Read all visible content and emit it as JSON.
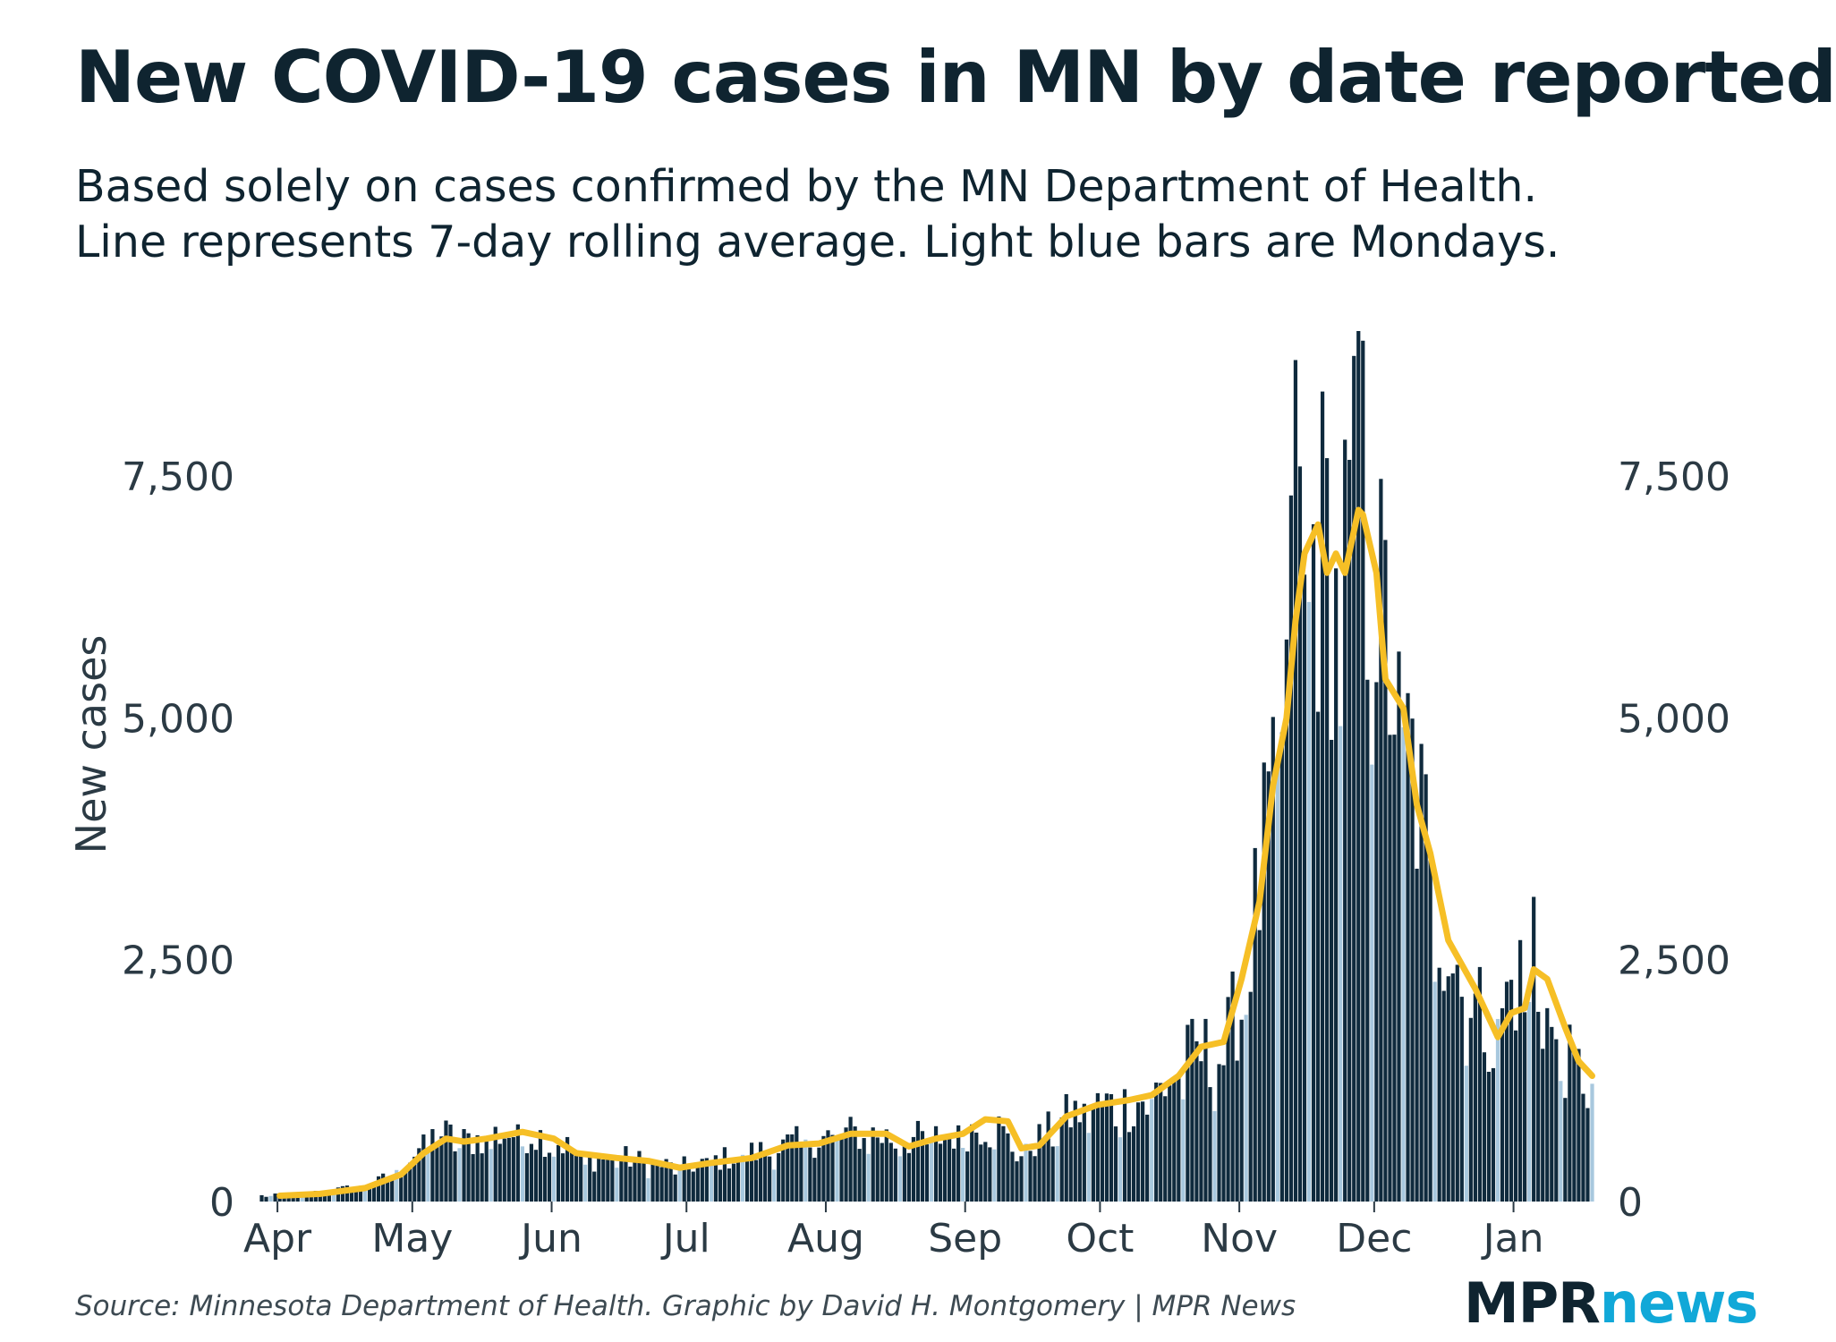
{
  "header": {
    "title": "New COVID-19 cases in MN by date reported",
    "subtitle_line1": "Based solely on cases confirmed by the MN Department of Health.",
    "subtitle_line2": "Line represents 7-day rolling average. Light blue bars are Mondays."
  },
  "footer": {
    "source": "Source: Minnesota Department of Health. Graphic by David H. Montgomery | MPR News",
    "logo_mpr": "MPR",
    "logo_news": "news"
  },
  "colors": {
    "bar": "#0f2a3d",
    "monday_bar": "#a8c8de",
    "line": "#f6bf26",
    "text": "#0f2430"
  },
  "chart_data": {
    "type": "bar",
    "ylabel": "New cases",
    "ylim": [
      0,
      9000
    ],
    "y_ticks": [
      0,
      2500,
      5000,
      7500
    ],
    "y_tick_labels": [
      "0",
      "2,500",
      "5,000",
      "7,500"
    ],
    "x_tick_labels": [
      "Apr",
      "May",
      "Jun",
      "Jul",
      "Aug",
      "Sep",
      "Oct",
      "Nov",
      "Dec",
      "Jan"
    ],
    "x_start": "2020-03-28",
    "x_end": "2021-01-18",
    "series": [
      {
        "name": "Daily new cases",
        "role": "bars",
        "monday_highlight": true
      },
      {
        "name": "7-day rolling average",
        "role": "line"
      }
    ],
    "daily_anchors": [
      [
        "2020-03-28",
        60
      ],
      [
        "2020-04-05",
        70
      ],
      [
        "2020-04-15",
        130
      ],
      [
        "2020-04-22",
        180
      ],
      [
        "2020-04-28",
        350
      ],
      [
        "2020-05-03",
        600
      ],
      [
        "2020-05-07",
        700
      ],
      [
        "2020-05-12",
        620
      ],
      [
        "2020-05-20",
        700
      ],
      [
        "2020-05-27",
        700
      ],
      [
        "2020-06-03",
        600
      ],
      [
        "2020-06-08",
        420
      ],
      [
        "2020-06-15",
        470
      ],
      [
        "2020-06-22",
        400
      ],
      [
        "2020-06-29",
        350
      ],
      [
        "2020-07-06",
        420
      ],
      [
        "2020-07-13",
        480
      ],
      [
        "2020-07-20",
        550
      ],
      [
        "2020-07-27",
        620
      ],
      [
        "2020-08-03",
        700
      ],
      [
        "2020-08-10",
        700
      ],
      [
        "2020-08-17",
        650
      ],
      [
        "2020-08-24",
        650
      ],
      [
        "2020-08-31",
        720
      ],
      [
        "2020-09-07",
        820
      ],
      [
        "2020-09-12",
        500
      ],
      [
        "2020-09-17",
        650
      ],
      [
        "2020-09-24",
        900
      ],
      [
        "2020-10-01",
        1000
      ],
      [
        "2020-10-08",
        1000
      ],
      [
        "2020-10-15",
        1200
      ],
      [
        "2020-10-22",
        1550
      ],
      [
        "2020-10-28",
        1500
      ],
      [
        "2020-11-01",
        2200
      ],
      [
        "2020-11-05",
        3200
      ],
      [
        "2020-11-08",
        4300
      ],
      [
        "2020-11-12",
        5600
      ],
      [
        "2020-11-15",
        6800
      ],
      [
        "2020-11-20",
        6700
      ],
      [
        "2020-11-24",
        6600
      ],
      [
        "2020-11-29",
        7300
      ],
      [
        "2020-12-02",
        6000
      ],
      [
        "2020-12-06",
        5200
      ],
      [
        "2020-12-10",
        4200
      ],
      [
        "2020-12-14",
        3200
      ],
      [
        "2020-12-18",
        2600
      ],
      [
        "2020-12-23",
        2000
      ],
      [
        "2020-12-27",
        1800
      ],
      [
        "2021-01-01",
        2300
      ],
      [
        "2021-01-06",
        2200
      ],
      [
        "2021-01-10",
        1600
      ],
      [
        "2021-01-14",
        1350
      ],
      [
        "2021-01-18",
        1300
      ]
    ],
    "daily_spikes": [
      [
        "2020-11-12",
        7300
      ],
      [
        "2020-11-13",
        8700
      ],
      [
        "2020-11-14",
        7600
      ],
      [
        "2020-11-27",
        9000
      ],
      [
        "2020-11-28",
        8900
      ],
      [
        "2021-01-05",
        3150
      ]
    ],
    "rolling_average": [
      [
        "2020-04-01",
        60
      ],
      [
        "2020-04-10",
        80
      ],
      [
        "2020-04-20",
        140
      ],
      [
        "2020-04-28",
        280
      ],
      [
        "2020-05-03",
        500
      ],
      [
        "2020-05-08",
        650
      ],
      [
        "2020-05-12",
        620
      ],
      [
        "2020-05-17",
        650
      ],
      [
        "2020-05-25",
        720
      ],
      [
        "2020-06-01",
        650
      ],
      [
        "2020-06-06",
        500
      ],
      [
        "2020-06-15",
        450
      ],
      [
        "2020-06-22",
        420
      ],
      [
        "2020-06-29",
        350
      ],
      [
        "2020-07-06",
        400
      ],
      [
        "2020-07-15",
        450
      ],
      [
        "2020-07-23",
        580
      ],
      [
        "2020-07-30",
        600
      ],
      [
        "2020-08-06",
        700
      ],
      [
        "2020-08-14",
        700
      ],
      [
        "2020-08-19",
        570
      ],
      [
        "2020-08-25",
        650
      ],
      [
        "2020-08-31",
        700
      ],
      [
        "2020-09-05",
        850
      ],
      [
        "2020-09-10",
        830
      ],
      [
        "2020-09-13",
        550
      ],
      [
        "2020-09-17",
        580
      ],
      [
        "2020-09-23",
        880
      ],
      [
        "2020-09-30",
        1000
      ],
      [
        "2020-10-07",
        1050
      ],
      [
        "2020-10-12",
        1100
      ],
      [
        "2020-10-18",
        1300
      ],
      [
        "2020-10-23",
        1600
      ],
      [
        "2020-10-28",
        1650
      ],
      [
        "2020-11-01",
        2300
      ],
      [
        "2020-11-05",
        3100
      ],
      [
        "2020-11-08",
        4300
      ],
      [
        "2020-11-11",
        5000
      ],
      [
        "2020-11-13",
        6000
      ],
      [
        "2020-11-15",
        6700
      ],
      [
        "2020-11-18",
        7000
      ],
      [
        "2020-11-20",
        6500
      ],
      [
        "2020-11-22",
        6700
      ],
      [
        "2020-11-24",
        6500
      ],
      [
        "2020-11-27",
        7150
      ],
      [
        "2020-11-28",
        7100
      ],
      [
        "2020-12-01",
        6500
      ],
      [
        "2020-12-03",
        5400
      ],
      [
        "2020-12-07",
        5100
      ],
      [
        "2020-12-10",
        4100
      ],
      [
        "2020-12-13",
        3600
      ],
      [
        "2020-12-17",
        2700
      ],
      [
        "2020-12-23",
        2200
      ],
      [
        "2020-12-28",
        1700
      ],
      [
        "2020-12-31",
        1950
      ],
      [
        "2021-01-03",
        2000
      ],
      [
        "2021-01-05",
        2400
      ],
      [
        "2021-01-08",
        2300
      ],
      [
        "2021-01-12",
        1800
      ],
      [
        "2021-01-15",
        1450
      ],
      [
        "2021-01-18",
        1300
      ]
    ]
  }
}
